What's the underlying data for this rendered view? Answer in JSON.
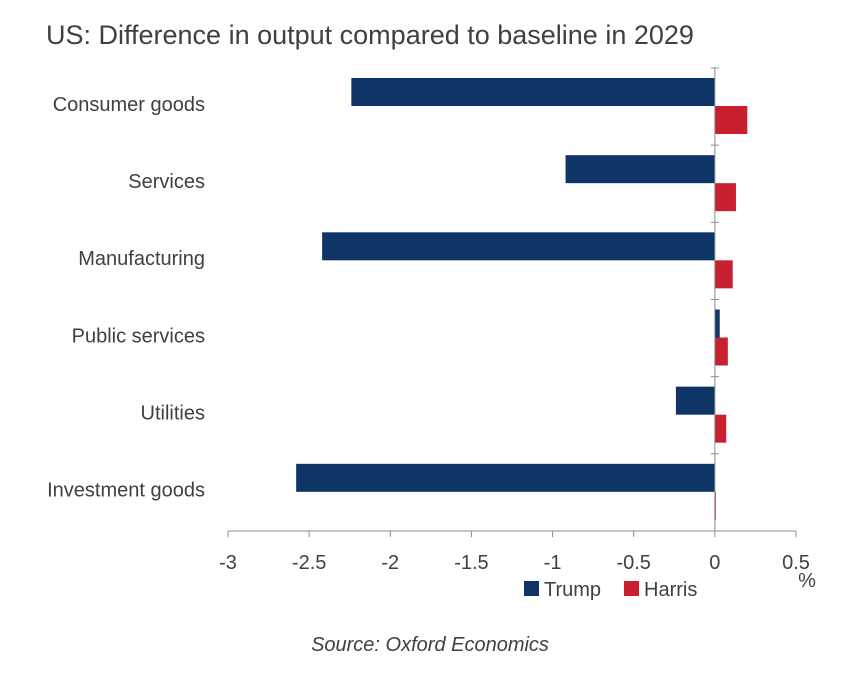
{
  "chart_data": {
    "type": "bar",
    "orientation": "horizontal",
    "title": "US: Difference in output compared to baseline in 2029",
    "categories": [
      "Consumer goods",
      "Services",
      "Manufacturing",
      "Public services",
      "Utilities",
      "Investment goods"
    ],
    "series": [
      {
        "name": "Trump",
        "color": "#0f3567",
        "values": [
          -2.24,
          -0.92,
          -2.42,
          0.03,
          -0.24,
          -2.58
        ]
      },
      {
        "name": "Harris",
        "color": "#c8202f",
        "values": [
          0.2,
          0.13,
          0.11,
          0.08,
          0.07,
          0.0
        ]
      }
    ],
    "xlim": [
      -3,
      0.5
    ],
    "xticks": [
      "-3",
      "-2.5",
      "-2",
      "-1.5",
      "-1",
      "-0.5",
      "0",
      "0.5"
    ],
    "xunit": "%",
    "grid": false,
    "legend_position": "bottom-center"
  },
  "source": "Source: Oxford Economics"
}
